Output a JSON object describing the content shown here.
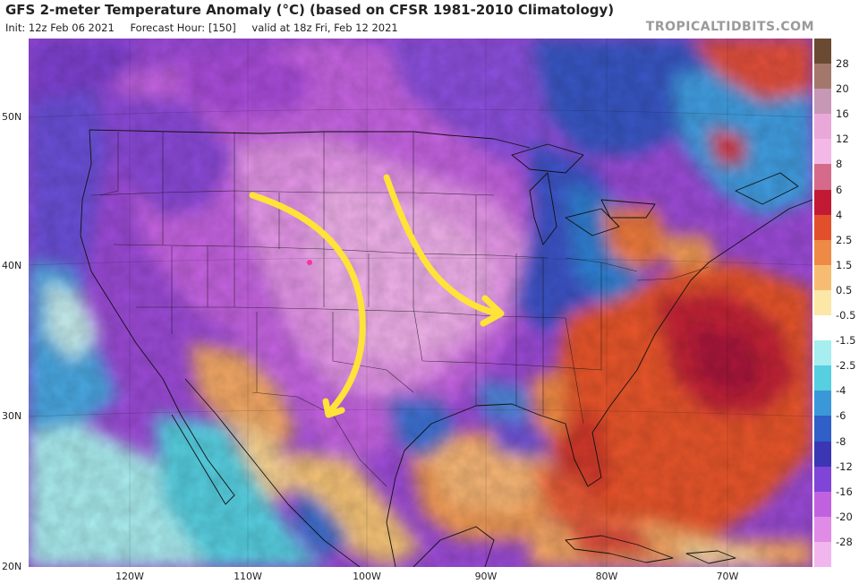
{
  "title": "GFS 2-meter Temperature Anomaly (°C) (based on CFSR 1981-2010 Climatology)",
  "subtitle": {
    "init": "Init: 12z Feb 06 2021",
    "forecast_hour": "Forecast Hour: [150]",
    "valid": "valid at 18z Fri, Feb 12 2021"
  },
  "brand": "TROPICALTIDBITS.COM",
  "map": {
    "lat_labels": [
      "50N",
      "40N",
      "30N",
      "20N"
    ],
    "lon_labels": [
      "120W",
      "110W",
      "100W",
      "90W",
      "80W",
      "70W"
    ],
    "annotation_arrows": [
      {
        "name": "arrow-west",
        "color": "#ffe338"
      },
      {
        "name": "arrow-east",
        "color": "#ffe338"
      }
    ]
  },
  "colorbar": {
    "labels": [
      "28",
      "20",
      "16",
      "12",
      "8",
      "6",
      "4",
      "2.5",
      "1.5",
      "0.5",
      "-0.5",
      "-1.5",
      "-2.5",
      "-4",
      "-6",
      "-8",
      "-12",
      "-16",
      "-20",
      "-28"
    ],
    "colors": [
      "#6b4a33",
      "#a3776b",
      "#c797b6",
      "#e9a8d8",
      "#f4b8e6",
      "#d56a8a",
      "#c21a35",
      "#e2502b",
      "#ee8a45",
      "#f6bd72",
      "#fbe7a6",
      "#ffffff",
      "#a6eef0",
      "#56cfe0",
      "#3a98d9",
      "#2f5fc7",
      "#3a36b4",
      "#7f44d8",
      "#c062e0",
      "#e08be5",
      "#f2b6ef"
    ]
  }
}
